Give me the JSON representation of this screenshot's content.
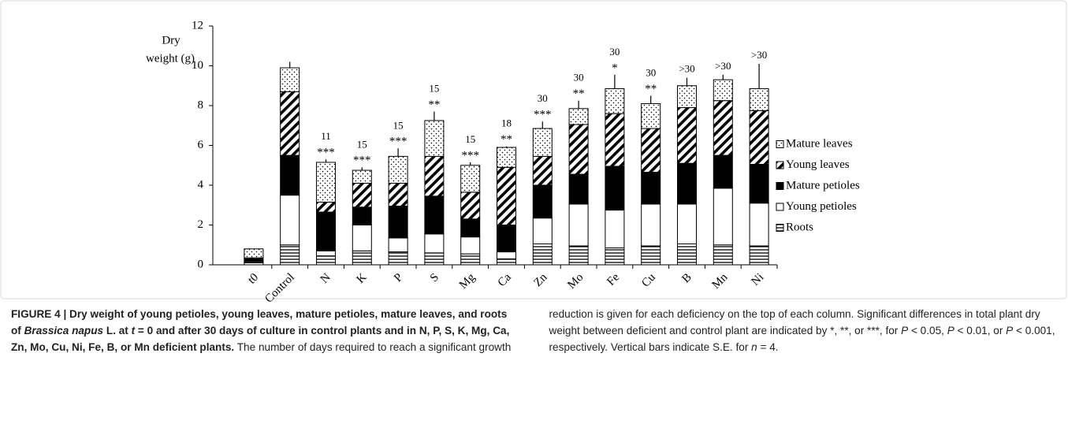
{
  "chart_data": {
    "type": "stacked_bar",
    "y_label_lines": [
      "Dry",
      "weight (g)"
    ],
    "categories": [
      "t0",
      "Control",
      "N",
      "K",
      "P",
      "S",
      "Mg",
      "Ca",
      "Zn",
      "Mo",
      "Fe",
      "Cu",
      "B",
      "Mn",
      "Ni"
    ],
    "series": [
      {
        "name": "Roots",
        "color": "#000000",
        "pattern": "horizontal-lines",
        "values": [
          0.1,
          1.0,
          0.45,
          0.7,
          0.65,
          0.6,
          0.55,
          0.3,
          1.05,
          0.95,
          0.85,
          0.95,
          1.05,
          1.0,
          0.95
        ]
      },
      {
        "name": "Young petioles",
        "color": "#ffffff",
        "pattern": "none",
        "values": [
          0.05,
          2.5,
          0.25,
          1.3,
          0.7,
          0.95,
          0.85,
          0.35,
          1.3,
          2.1,
          1.9,
          2.1,
          2.0,
          2.85,
          2.15
        ]
      },
      {
        "name": "Mature petioles",
        "color": "#000000",
        "pattern": "none",
        "values": [
          0.15,
          2.0,
          1.95,
          0.9,
          1.6,
          1.9,
          0.9,
          1.35,
          1.65,
          1.5,
          2.2,
          1.6,
          2.05,
          1.65,
          1.95
        ]
      },
      {
        "name": "Young leaves",
        "color": "#000000",
        "pattern": "diagonal",
        "values": [
          0.05,
          3.2,
          0.5,
          1.2,
          1.15,
          2.0,
          1.35,
          2.9,
          1.45,
          2.5,
          2.65,
          2.2,
          2.8,
          2.75,
          2.7
        ]
      },
      {
        "name": "Mature leaves",
        "color": "#000000",
        "pattern": "dots",
        "values": [
          0.45,
          1.2,
          2.0,
          0.65,
          1.35,
          1.8,
          1.35,
          1.0,
          1.4,
          0.8,
          1.25,
          1.25,
          1.1,
          1.05,
          1.1
        ]
      }
    ],
    "errors": [
      0.0,
      0.3,
      0.15,
      0.15,
      0.4,
      0.45,
      0.15,
      0.05,
      0.35,
      0.4,
      0.7,
      0.4,
      0.4,
      0.25,
      1.25
    ],
    "days": [
      null,
      null,
      "11",
      "15",
      "15",
      "15",
      "15",
      "18",
      "30",
      "30",
      "30",
      "30",
      ">30",
      ">30",
      ">30"
    ],
    "significance": [
      null,
      null,
      "***",
      "***",
      "***",
      "**",
      "***",
      "**",
      "***",
      "**",
      "*",
      "**",
      null,
      null,
      null
    ],
    "ylim": [
      0,
      12
    ],
    "yticks": [
      0,
      2,
      4,
      6,
      8,
      10,
      12
    ],
    "legend": "right"
  },
  "caption": {
    "parts": [
      "FIGURE 4 | Dry weight of young petioles, young leaves, mature petioles, mature leaves, and roots of ",
      "Brassica napus",
      " L. at ",
      "t",
      " = 0 and after 30 days of culture in control plants and in N, P, S, K, Mg, Ca, Zn, Mo, Cu, Ni, Fe, B, or Mn deficient plants.",
      " The number of days required to reach a significant growth reduction is given for each deficiency on the top of each column. Significant differences in total plant dry weight between deficient and control plant are indicated by *, **, or ***, for ",
      "P",
      " < 0.05, ",
      "P",
      " < 0.01, or ",
      "P",
      " < 0.001, respectively. Vertical bars indicate S.E. for ",
      "n",
      " = 4."
    ]
  }
}
